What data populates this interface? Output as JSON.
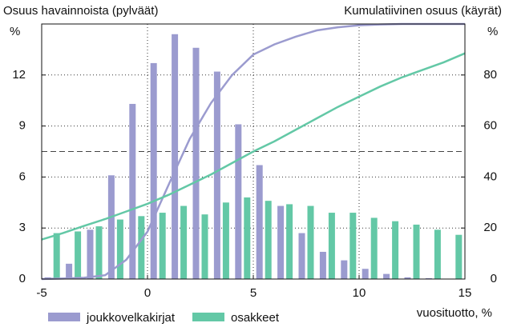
{
  "chart_data": {
    "type": "bar",
    "title": "Osuus havainnoista (pylväät)",
    "y2_title": "Kumulatiivinen osuus (käyrät)",
    "y_unit_label": "%",
    "y2_unit_label": "%",
    "x_label": "vuosituotto, %",
    "x": [
      -4.5,
      -3.5,
      -2.5,
      -1.5,
      -0.5,
      0.5,
      1.5,
      2.5,
      3.5,
      4.5,
      5.5,
      6.5,
      7.5,
      8.5,
      9.5,
      10.5,
      11.5,
      12.5,
      13.5,
      14.5
    ],
    "series": [
      {
        "name": "joukkovelkakirjat",
        "color": "#9b9bcf",
        "values": [
          0.1,
          0.9,
          2.9,
          6.1,
          10.3,
          12.7,
          14.4,
          13.6,
          12.2,
          9.1,
          6.7,
          4.3,
          2.7,
          1.6,
          1.1,
          0.6,
          0.3,
          0.1,
          0.05,
          0
        ]
      },
      {
        "name": "osakkeet",
        "color": "#63c8a6",
        "values": [
          2.7,
          2.8,
          3.1,
          3.5,
          3.7,
          3.9,
          4.3,
          3.8,
          4.5,
          4.8,
          4.6,
          4.4,
          4.3,
          3.9,
          3.9,
          3.6,
          3.4,
          3.2,
          2.9,
          2.6
        ]
      }
    ],
    "lines": [
      {
        "type": "line",
        "axis": "y2",
        "color": "#9b9bcf",
        "x": [
          -5,
          -4,
          -3,
          -2,
          -1,
          0,
          1,
          2,
          3,
          4,
          5,
          6,
          7,
          8,
          9,
          10,
          11,
          12,
          13,
          14,
          15
        ],
        "values": [
          0,
          0.2,
          0.5,
          1.5,
          7.6,
          18.6,
          37,
          55,
          69,
          80,
          88,
          92,
          95,
          97.5,
          98.7,
          99.5,
          99.8,
          100,
          100,
          100,
          100
        ]
      },
      {
        "type": "line",
        "axis": "y2",
        "color": "#63c8a6",
        "x": [
          -5,
          -4,
          -3,
          -2,
          -1,
          0,
          1,
          2,
          3,
          4,
          5,
          6,
          7,
          8,
          9,
          10,
          11,
          12,
          13,
          14,
          15
        ],
        "values": [
          15.5,
          18,
          20.8,
          23.5,
          26.5,
          29.5,
          33,
          37,
          41,
          45.5,
          50,
          54,
          58.5,
          63,
          67.5,
          71.5,
          75.5,
          79,
          82,
          85,
          88.5
        ]
      }
    ],
    "xlim": [
      -5,
      15
    ],
    "xticks": [
      -5,
      0,
      5,
      10,
      15
    ],
    "ylim": [
      0,
      15
    ],
    "yticks": [
      0,
      3,
      6,
      9,
      12
    ],
    "y2lim": [
      0,
      100
    ],
    "y2ticks": [
      0,
      20,
      40,
      60,
      80
    ],
    "y2_reference_line": 50,
    "grid": true,
    "legend": "bottom"
  }
}
